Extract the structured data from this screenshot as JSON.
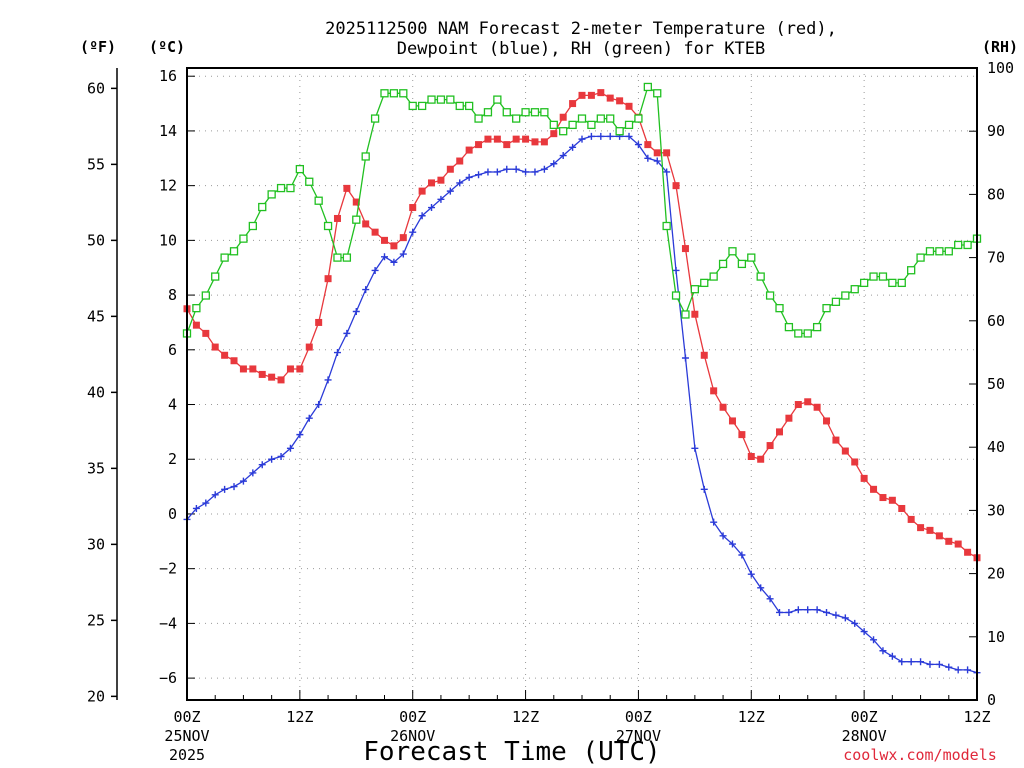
{
  "chart_data": {
    "type": "line",
    "title": [
      "2025112500 NAM Forecast 2-meter Temperature (red),",
      "Dewpoint (blue), RH (green) for KTEB"
    ],
    "xlabel": "Forecast Time (UTC)",
    "credit": "coolwx.com/models",
    "units": {
      "fahrenheit": "(ºF)",
      "celsius": "(ºC)",
      "rh": "(RH)"
    },
    "x_range_hours": [
      0,
      84
    ],
    "x_ticks": [
      {
        "hour": 0,
        "lines": [
          "00Z",
          "25NOV",
          "2025"
        ]
      },
      {
        "hour": 12,
        "lines": [
          "12Z"
        ]
      },
      {
        "hour": 24,
        "lines": [
          "00Z",
          "26NOV"
        ]
      },
      {
        "hour": 36,
        "lines": [
          "12Z"
        ]
      },
      {
        "hour": 48,
        "lines": [
          "00Z",
          "27NOV"
        ]
      },
      {
        "hour": 60,
        "lines": [
          "12Z"
        ]
      },
      {
        "hour": 72,
        "lines": [
          "00Z",
          "28NOV"
        ]
      },
      {
        "hour": 84,
        "lines": [
          "12Z"
        ]
      }
    ],
    "celsius_axis": {
      "range": [
        -6.8,
        16.3
      ],
      "ticks": [
        -6,
        -4,
        -2,
        0,
        2,
        4,
        6,
        8,
        10,
        12,
        14,
        16
      ]
    },
    "fahrenheit_axis": {
      "ticks": [
        20,
        25,
        30,
        35,
        40,
        45,
        50,
        55,
        60
      ]
    },
    "rh_axis": {
      "range": [
        0,
        100
      ],
      "ticks": [
        0,
        10,
        20,
        30,
        40,
        50,
        60,
        70,
        80,
        90,
        100
      ]
    },
    "grid": true,
    "series": [
      {
        "name": "Temperature",
        "color": "#e8383d",
        "marker": "filled-square",
        "axis": "celsius",
        "x": [
          0,
          1,
          2,
          3,
          4,
          5,
          6,
          7,
          8,
          9,
          10,
          11,
          12,
          13,
          14,
          15,
          16,
          17,
          18,
          19,
          20,
          21,
          22,
          23,
          24,
          25,
          26,
          27,
          28,
          29,
          30,
          31,
          32,
          33,
          34,
          35,
          36,
          37,
          38,
          39,
          40,
          41,
          42,
          43,
          44,
          45,
          46,
          47,
          48,
          49,
          50,
          51,
          52,
          53,
          54,
          55,
          56,
          57,
          58,
          59,
          60,
          61,
          62,
          63,
          64,
          65,
          66,
          67,
          68,
          69,
          70,
          71,
          72,
          73,
          74,
          75,
          76,
          77,
          78,
          79,
          80,
          81,
          82,
          83,
          84
        ],
        "values": [
          7.5,
          6.9,
          6.6,
          6.1,
          5.8,
          5.6,
          5.3,
          5.3,
          5.1,
          5.0,
          4.9,
          5.3,
          5.3,
          6.1,
          7.0,
          8.6,
          10.8,
          11.9,
          11.4,
          10.6,
          10.3,
          10.0,
          9.8,
          10.1,
          11.2,
          11.8,
          12.1,
          12.2,
          12.6,
          12.9,
          13.3,
          13.5,
          13.7,
          13.7,
          13.5,
          13.7,
          13.7,
          13.6,
          13.6,
          13.9,
          14.5,
          15.0,
          15.3,
          15.3,
          15.4,
          15.2,
          15.1,
          14.9,
          14.5,
          13.5,
          13.2,
          13.2,
          12.0,
          9.7,
          7.3,
          5.8,
          4.5,
          3.9,
          3.4,
          2.9,
          2.1,
          2.0,
          2.5,
          3.0,
          3.5,
          4.0,
          4.1,
          3.9,
          3.4,
          2.7,
          2.3,
          1.9,
          1.3,
          0.9,
          0.6,
          0.5,
          0.2,
          -0.2,
          -0.5,
          -0.6,
          -0.8,
          -1.0,
          -1.1,
          -1.4,
          -1.6
        ]
      },
      {
        "name": "Dewpoint",
        "color": "#2b3bd8",
        "marker": "plus",
        "axis": "celsius",
        "x": [
          0,
          1,
          2,
          3,
          4,
          5,
          6,
          7,
          8,
          9,
          10,
          11,
          12,
          13,
          14,
          15,
          16,
          17,
          18,
          19,
          20,
          21,
          22,
          23,
          24,
          25,
          26,
          27,
          28,
          29,
          30,
          31,
          32,
          33,
          34,
          35,
          36,
          37,
          38,
          39,
          40,
          41,
          42,
          43,
          44,
          45,
          46,
          47,
          48,
          49,
          50,
          51,
          52,
          53,
          54,
          55,
          56,
          57,
          58,
          59,
          60,
          61,
          62,
          63,
          64,
          65,
          66,
          67,
          68,
          69,
          70,
          71,
          72,
          73,
          74,
          75,
          76,
          77,
          78,
          79,
          80,
          81,
          82,
          83,
          84
        ],
        "values": [
          -0.2,
          0.2,
          0.4,
          0.7,
          0.9,
          1.0,
          1.2,
          1.5,
          1.8,
          2.0,
          2.1,
          2.4,
          2.9,
          3.5,
          4.0,
          4.9,
          5.9,
          6.6,
          7.4,
          8.2,
          8.9,
          9.4,
          9.2,
          9.5,
          10.3,
          10.9,
          11.2,
          11.5,
          11.8,
          12.1,
          12.3,
          12.4,
          12.5,
          12.5,
          12.6,
          12.6,
          12.5,
          12.5,
          12.6,
          12.8,
          13.1,
          13.4,
          13.7,
          13.8,
          13.8,
          13.8,
          13.8,
          13.8,
          13.5,
          13.0,
          12.9,
          12.5,
          8.9,
          5.7,
          2.4,
          0.9,
          -0.3,
          -0.8,
          -1.1,
          -1.5,
          -2.2,
          -2.7,
          -3.1,
          -3.6,
          -3.6,
          -3.5,
          -3.5,
          -3.5,
          -3.6,
          -3.7,
          -3.8,
          -4.0,
          -4.3,
          -4.6,
          -5.0,
          -5.2,
          -5.4,
          -5.4,
          -5.4,
          -5.5,
          -5.5,
          -5.6,
          -5.7,
          -5.7,
          -5.8
        ]
      },
      {
        "name": "RH",
        "color": "#21c021",
        "marker": "open-square",
        "axis": "rh",
        "x": [
          0,
          1,
          2,
          3,
          4,
          5,
          6,
          7,
          8,
          9,
          10,
          11,
          12,
          13,
          14,
          15,
          16,
          17,
          18,
          19,
          20,
          21,
          22,
          23,
          24,
          25,
          26,
          27,
          28,
          29,
          30,
          31,
          32,
          33,
          34,
          35,
          36,
          37,
          38,
          39,
          40,
          41,
          42,
          43,
          44,
          45,
          46,
          47,
          48,
          49,
          50,
          51,
          52,
          53,
          54,
          55,
          56,
          57,
          58,
          59,
          60,
          61,
          62,
          63,
          64,
          65,
          66,
          67,
          68,
          69,
          70,
          71,
          72,
          73,
          74,
          75,
          76,
          77,
          78,
          79,
          80,
          81,
          82,
          83,
          84
        ],
        "values": [
          58,
          62,
          64,
          67,
          70,
          71,
          73,
          75,
          78,
          80,
          81,
          81,
          84,
          82,
          79,
          75,
          70,
          70,
          76,
          86,
          92,
          96,
          96,
          96,
          94,
          94,
          95,
          95,
          95,
          94,
          94,
          92,
          93,
          95,
          93,
          92,
          93,
          93,
          93,
          91,
          90,
          91,
          92,
          91,
          92,
          92,
          90,
          91,
          92,
          97,
          96,
          75,
          64,
          61,
          65,
          66,
          67,
          69,
          71,
          69,
          70,
          67,
          64,
          62,
          59,
          58,
          58,
          59,
          62,
          63,
          64,
          65,
          66,
          67,
          67,
          66,
          66,
          68,
          70,
          71,
          71,
          71,
          72,
          72,
          73
        ]
      }
    ]
  }
}
